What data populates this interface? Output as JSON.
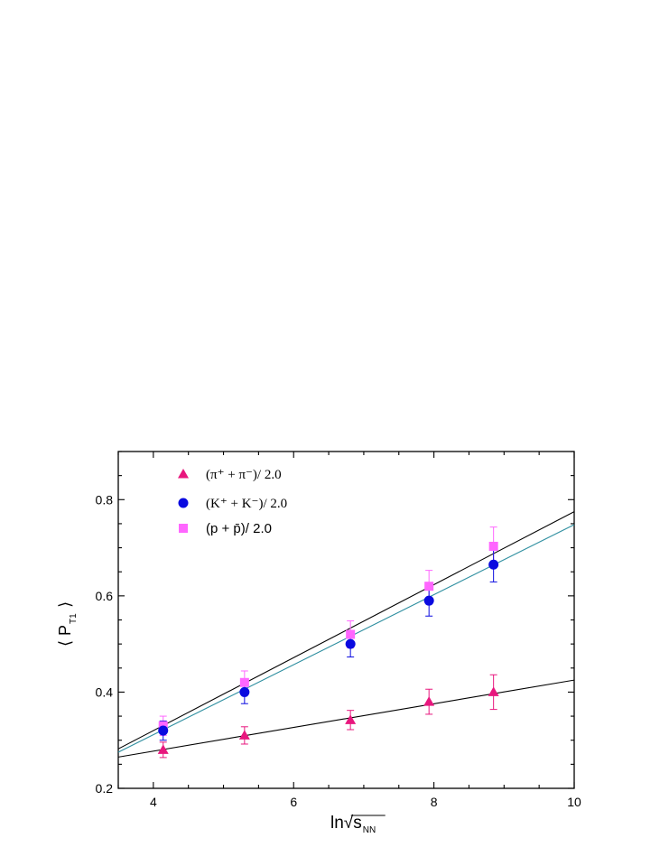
{
  "chart_data": {
    "type": "scatter",
    "x_axis": {
      "label": "ln√s",
      "label_subscript": "NN",
      "range": [
        3.5,
        10
      ],
      "major_ticks": [
        4,
        6,
        8,
        10
      ],
      "minor_step": 0.5
    },
    "y_axis": {
      "label_left": "⟨ P",
      "label_subscript": "T1",
      "label_right": "⟩",
      "range": [
        0.2,
        0.9
      ],
      "major_ticks": [
        0.2,
        0.4,
        0.6,
        0.8
      ],
      "minor_step": 0.05
    },
    "grid": false,
    "legend_position": "top-left",
    "series": [
      {
        "name": "(π⁺ + π⁻)/ 2.0",
        "marker": "triangle",
        "color": "#e8177e",
        "points": [
          {
            "x": 4.14,
            "y": 0.28,
            "err": 0.016
          },
          {
            "x": 5.3,
            "y": 0.31,
            "err": 0.018
          },
          {
            "x": 6.81,
            "y": 0.342,
            "err": 0.02
          },
          {
            "x": 7.93,
            "y": 0.38,
            "err": 0.026
          },
          {
            "x": 8.85,
            "y": 0.4,
            "err": 0.036
          }
        ],
        "fit": {
          "color": "#000000",
          "y_at_xmin": 0.265,
          "y_at_xmax": 0.425
        }
      },
      {
        "name": "(K⁺ + K⁻)/ 2.0",
        "marker": "circle",
        "color": "#0a0ae0",
        "points": [
          {
            "x": 4.14,
            "y": 0.32,
            "err": 0.02
          },
          {
            "x": 5.3,
            "y": 0.4,
            "err": 0.024
          },
          {
            "x": 6.81,
            "y": 0.5,
            "err": 0.027
          },
          {
            "x": 7.93,
            "y": 0.59,
            "err": 0.032
          },
          {
            "x": 8.85,
            "y": 0.665,
            "err": 0.036
          }
        ],
        "fit": {
          "color": "#2f8fa0",
          "y_at_xmin": 0.275,
          "y_at_xmax": 0.748
        }
      },
      {
        "name": "(p + p̄)/ 2.0",
        "marker": "square",
        "color": "#ff66ff",
        "points": [
          {
            "x": 4.14,
            "y": 0.33,
            "err": 0.02
          },
          {
            "x": 5.3,
            "y": 0.42,
            "err": 0.024
          },
          {
            "x": 6.81,
            "y": 0.52,
            "err": 0.028
          },
          {
            "x": 7.93,
            "y": 0.62,
            "err": 0.033
          },
          {
            "x": 8.85,
            "y": 0.703,
            "err": 0.04
          }
        ],
        "fit": {
          "color": "#000000",
          "y_at_xmin": 0.282,
          "y_at_xmax": 0.775
        }
      }
    ]
  }
}
